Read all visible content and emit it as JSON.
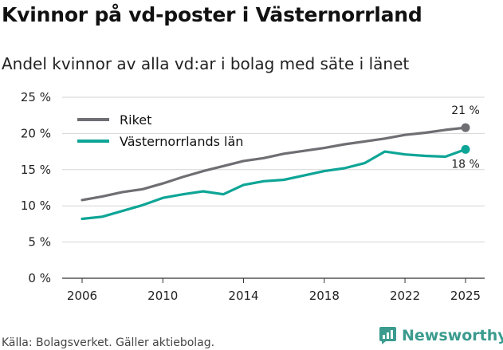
{
  "title": "Kvinnor på vd-poster i Västernorrland",
  "subtitle": "Andel kvinnor av alla vd:ar i bolag med säte i länet",
  "source": "Källa: Bolagsverket. Gäller aktiebolag.",
  "brand": "Newsworthy",
  "colors": {
    "riket": "#6e6e73",
    "lan": "#0ea596",
    "grid": "#d6d6d6",
    "brand": "#3a9b8e"
  },
  "chart_data": {
    "type": "line",
    "title": "Kvinnor på vd-poster i Västernorrland",
    "ylim": [
      0,
      25
    ],
    "xlim": [
      2006,
      2025
    ],
    "y_ticks": [
      0,
      5,
      10,
      15,
      20,
      25
    ],
    "y_tick_labels": [
      "0 %",
      "5 %",
      "10 %",
      "15 %",
      "20 %",
      "25 %"
    ],
    "x_ticks": [
      2006,
      2010,
      2014,
      2018,
      2022,
      2025
    ],
    "x_tick_labels": [
      "2006",
      "2010",
      "2014",
      "2018",
      "2022",
      "2025"
    ],
    "x": [
      2006,
      2007,
      2008,
      2009,
      2010,
      2011,
      2012,
      2013,
      2014,
      2015,
      2016,
      2017,
      2018,
      2019,
      2020,
      2021,
      2022,
      2023,
      2024,
      2025
    ],
    "series": [
      {
        "name": "Riket",
        "end_label": "21 %",
        "values": [
          10.8,
          11.3,
          11.9,
          12.3,
          13.1,
          14.0,
          14.8,
          15.5,
          16.2,
          16.6,
          17.2,
          17.6,
          18.0,
          18.5,
          18.9,
          19.3,
          19.8,
          20.1,
          20.5,
          20.8
        ]
      },
      {
        "name": "Västernorrlands län",
        "end_label": "18 %",
        "values": [
          8.2,
          8.5,
          9.3,
          10.1,
          11.1,
          11.6,
          12.0,
          11.6,
          12.9,
          13.4,
          13.6,
          14.2,
          14.8,
          15.2,
          15.9,
          17.5,
          17.1,
          16.9,
          16.8,
          17.8
        ]
      }
    ]
  }
}
